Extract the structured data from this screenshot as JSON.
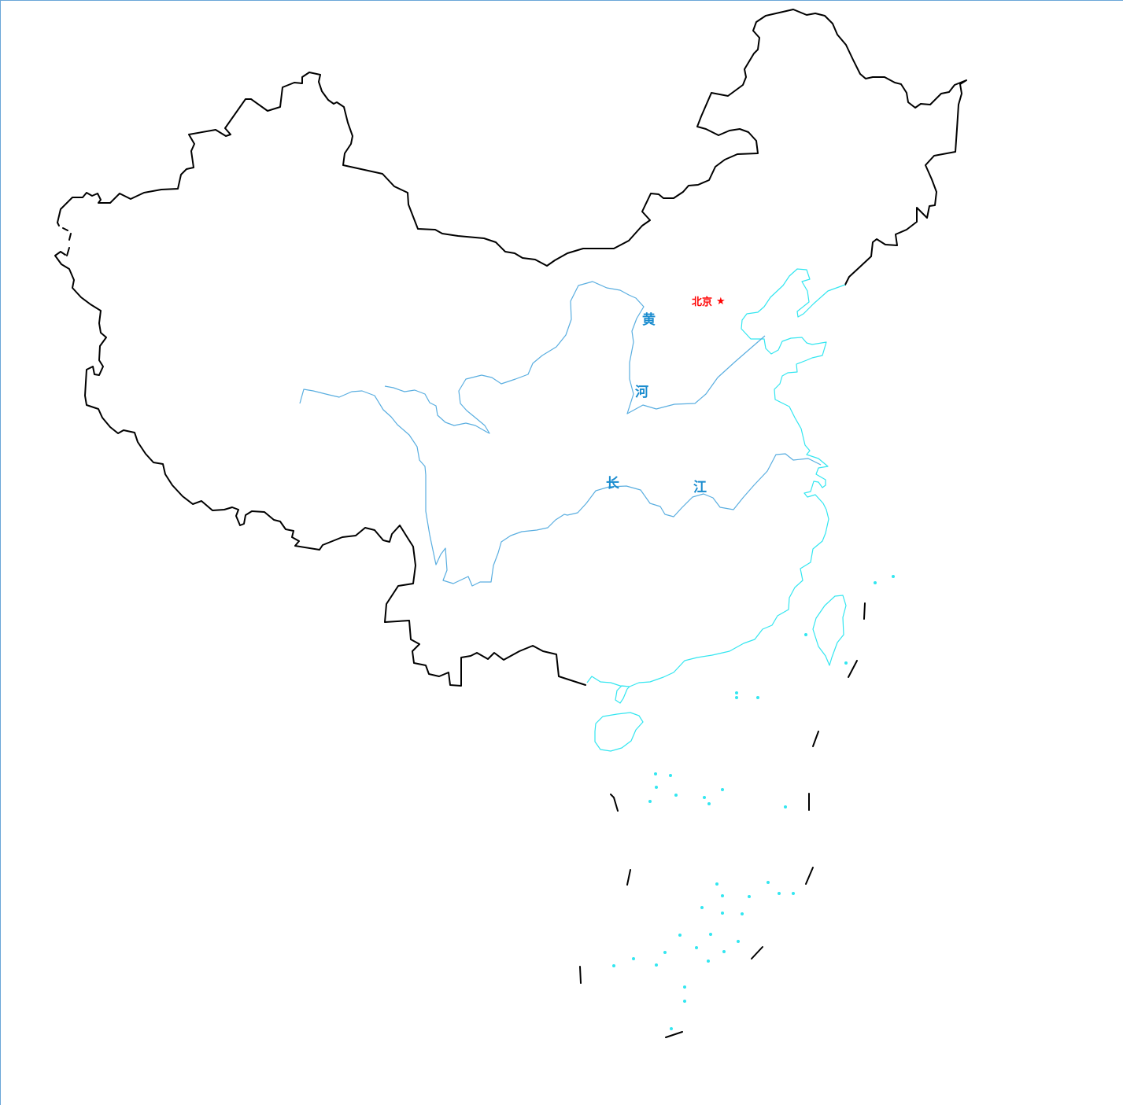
{
  "colors": {
    "border": "#000000",
    "coast": "#33e6f0",
    "river": "#5aaee0",
    "river_label": "#1a8ccf",
    "capital": "#ff0000"
  },
  "capital": {
    "name": "北京",
    "marker": "★",
    "icon": "star-icon"
  },
  "rivers": {
    "yellow": {
      "char1": "黄",
      "char2": "河"
    },
    "yangtze": {
      "char1": "长",
      "char2": "江"
    }
  }
}
